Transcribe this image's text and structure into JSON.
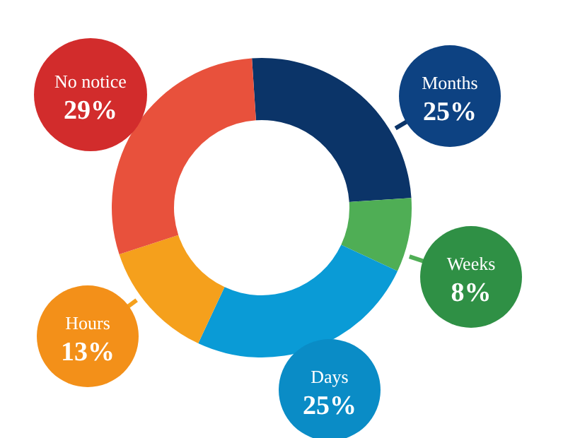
{
  "chart_data": {
    "type": "donut",
    "categories": [
      "Months",
      "Weeks",
      "Days",
      "Hours",
      "No notice"
    ],
    "values": [
      25,
      8,
      25,
      13,
      29
    ],
    "value_labels": [
      "25%",
      "8%",
      "25%",
      "13%",
      "29%"
    ],
    "colors": [
      "#0b3468",
      "#4fae55",
      "#0a9bd6",
      "#f5a01c",
      "#e8513c"
    ]
  }
}
